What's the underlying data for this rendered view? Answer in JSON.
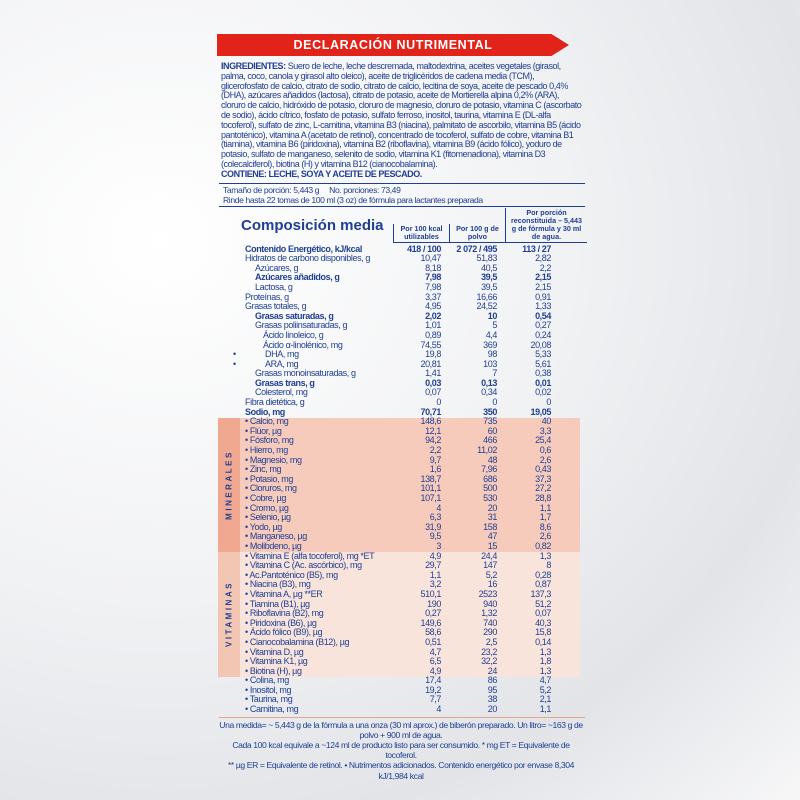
{
  "header": {
    "title": "DECLARACIÓN NUTRIMENTAL"
  },
  "ingredients": {
    "label": "INGREDIENTES:",
    "text": "Suero de leche, leche descremada, maltodextrina, aceites vegetales (girasol, palma, coco, canola y girasol alto oleico), aceite de triglicéridos de cadena media (TCM), glicerofosfato de calcio, citrato de sodio, citrato de calcio, lecitina de soya, aceite de pescado 0,4% (DHA), azúcares añadidos (lactosa), citrato de potasio, aceite de Mortierella alpina 0,2% (ARA), cloruro de calcio, hidróxido de potasio, cloruro de magnesio, cloruro de potasio, vitamina C (ascorbato de sodio), ácido cítrico, fosfato de potasio, sulfato ferroso, inositol, taurina, vitamina E (DL-alfa tocoferol), sulfato de zinc, L-carnitina, vitamina B3 (niacina), palmitato de ascorbilo, vitamina B5 (ácido pantoténico), vitamina A (acetato de retinol), concentrado de tocoferol, sulfato de cobre, vitamina B1 (tiamina), vitamina B6 (piridoxina), vitamina B2 (riboflavina), vitamina B9 (ácido fólico), yoduro de potasio, sulfato de manganeso, selenito de sodio, vitamina K1 (fitomenadiona), vitamina D3 (colecalciferol), biotina (H) y vitamina B12 (cianocobalamina).",
    "contains": "CONTIENE: LECHE, SOYA Y ACEITE DE PESCADO."
  },
  "serving": {
    "size": "Tamaño de porción: 5,443 g",
    "portions": "No. porciones: 73,49",
    "yield": "Rinde hasta 22 tomas de 100 ml (3 oz) de fórmula para lactantes preparada"
  },
  "table": {
    "title": "Composición media",
    "col1": "Por 100 kcal utilizables",
    "col2": "Por 100 g de polvo",
    "col3": "Por porción reconstituida – 5,443 g de fórmula y 30 ml de agua.",
    "minerals_label": "MINERALES",
    "vitamins_label": "VITAMINAS",
    "rows": [
      {
        "label": "Contenido Energético, kJ/kcal",
        "v1": "418 / 100",
        "v2": "2 072 / 495",
        "v3": "113 / 27",
        "bold": true,
        "indent": 0
      },
      {
        "label": "Hidratos de carbono disponibles, g",
        "v1": "10,47",
        "v2": "51,83",
        "v3": "2,82",
        "indent": 0
      },
      {
        "label": "Azúcares, g",
        "v1": "8,18",
        "v2": "40,5",
        "v3": "2,2",
        "indent": 1
      },
      {
        "label": "Azúcares añadidos, g",
        "v1": "7,98",
        "v2": "39,5",
        "v3": "2,15",
        "bold": true,
        "indent": 1
      },
      {
        "label": "Lactosa, g",
        "v1": "7,98",
        "v2": "39,5",
        "v3": "2,15",
        "indent": 1
      },
      {
        "label": "Proteínas, g",
        "v1": "3,37",
        "v2": "16,66",
        "v3": "0,91",
        "indent": 0
      },
      {
        "label": "Grasas totales, g",
        "v1": "4,95",
        "v2": "24,52",
        "v3": "1,33",
        "indent": 0
      },
      {
        "label": "Grasas saturadas, g",
        "v1": "2,02",
        "v2": "10",
        "v3": "0,54",
        "bold": true,
        "indent": 1
      },
      {
        "label": "Grasas poliinsaturadas, g",
        "v1": "1,01",
        "v2": "5",
        "v3": "0,27",
        "indent": 1
      },
      {
        "label": "Ácido linoleico, g",
        "v1": "0,89",
        "v2": "4,4",
        "v3": "0,24",
        "indent": 2
      },
      {
        "label": "Ácido α-linolénico, mg",
        "v1": "74,55",
        "v2": "369",
        "v3": "20,08",
        "indent": 2
      },
      {
        "label": "DHA, mg",
        "v1": "19,8",
        "v2": "98",
        "v3": "5,33",
        "indent": 2,
        "dot": "•"
      },
      {
        "label": "ARA, mg",
        "v1": "20,81",
        "v2": "103",
        "v3": "5,61",
        "indent": 2,
        "dot": "•"
      },
      {
        "label": "Grasas monoinsaturadas, g",
        "v1": "1,41",
        "v2": "7",
        "v3": "0,38",
        "indent": 1
      },
      {
        "label": "Grasas trans, g",
        "v1": "0,03",
        "v2": "0,13",
        "v3": "0,01",
        "bold": true,
        "indent": 1
      },
      {
        "label": "Colesterol, mg",
        "v1": "0,07",
        "v2": "0,34",
        "v3": "0,02",
        "indent": 1
      },
      {
        "label": "Fibra dietética, g",
        "v1": "0",
        "v2": "0",
        "v3": "0",
        "indent": 0
      },
      {
        "label": "Sodio, mg",
        "v1": "70,71",
        "v2": "350",
        "v3": "19,05",
        "bold": true,
        "indent": 0
      },
      {
        "label": "• Calcio, mg",
        "v1": "148,6",
        "v2": "735",
        "v3": "40",
        "indent": 0
      },
      {
        "label": "• Flúor, µg",
        "v1": "12,1",
        "v2": "60",
        "v3": "3,3",
        "indent": 0
      },
      {
        "label": "• Fósforo, mg",
        "v1": "94,2",
        "v2": "466",
        "v3": "25,4",
        "indent": 0
      },
      {
        "label": "• Hierro, mg",
        "v1": "2,2",
        "v2": "11,02",
        "v3": "0,6",
        "indent": 0
      },
      {
        "label": "• Magnesio, mg",
        "v1": "9,7",
        "v2": "48",
        "v3": "2,6",
        "indent": 0
      },
      {
        "label": "• Zinc, mg",
        "v1": "1,6",
        "v2": "7,96",
        "v3": "0,43",
        "indent": 0
      },
      {
        "label": "• Potasio, mg",
        "v1": "138,7",
        "v2": "686",
        "v3": "37,3",
        "indent": 0
      },
      {
        "label": "• Cloruros, mg",
        "v1": "101,1",
        "v2": "500",
        "v3": "27,2",
        "indent": 0
      },
      {
        "label": "• Cobre, µg",
        "v1": "107,1",
        "v2": "530",
        "v3": "28,8",
        "indent": 0
      },
      {
        "label": "• Cromo, µg",
        "v1": "4",
        "v2": "20",
        "v3": "1,1",
        "indent": 0
      },
      {
        "label": "• Selenio, µg",
        "v1": "6,3",
        "v2": "31",
        "v3": "1,7",
        "indent": 0
      },
      {
        "label": "• Yodo, µg",
        "v1": "31,9",
        "v2": "158",
        "v3": "8,6",
        "indent": 0
      },
      {
        "label": "• Manganeso, µg",
        "v1": "9,5",
        "v2": "47",
        "v3": "2,6",
        "indent": 0
      },
      {
        "label": "• Molibdeno, µg",
        "v1": "3",
        "v2": "15",
        "v3": "0,82",
        "indent": 0
      },
      {
        "label": "• Vitamina E (alfa tocoferol), mg *ET",
        "v1": "4,9",
        "v2": "24,4",
        "v3": "1,3",
        "indent": 0
      },
      {
        "label": "• Vitamina C (Ac. ascórbico), mg",
        "v1": "29,7",
        "v2": "147",
        "v3": "8",
        "indent": 0
      },
      {
        "label": "• Ac.Pantoténico (B5), mg",
        "v1": "1,1",
        "v2": "5,2",
        "v3": "0,28",
        "indent": 0
      },
      {
        "label": "• Niacina (B3), mg",
        "v1": "3,2",
        "v2": "16",
        "v3": "0,87",
        "indent": 0
      },
      {
        "label": "• Vitamina A, µg **ER",
        "v1": "510,1",
        "v2": "2523",
        "v3": "137,3",
        "indent": 0
      },
      {
        "label": "• Tiamina (B1), µg",
        "v1": "190",
        "v2": "940",
        "v3": "51,2",
        "indent": 0
      },
      {
        "label": "• Riboflavina (B2), mg",
        "v1": "0,27",
        "v2": "1,32",
        "v3": "0,07",
        "indent": 0
      },
      {
        "label": "• Piridoxina (B6), µg",
        "v1": "149,6",
        "v2": "740",
        "v3": "40,3",
        "indent": 0
      },
      {
        "label": "• Ácido fólico (B9), µg",
        "v1": "58,6",
        "v2": "290",
        "v3": "15,8",
        "indent": 0
      },
      {
        "label": "• Cianocobalamina (B12), µg",
        "v1": "0,51",
        "v2": "2,5",
        "v3": "0,14",
        "indent": 0
      },
      {
        "label": "• Vitamina D, µg",
        "v1": "4,7",
        "v2": "23,2",
        "v3": "1,3",
        "indent": 0
      },
      {
        "label": "• Vitamina K1, µg",
        "v1": "6,5",
        "v2": "32,2",
        "v3": "1,8",
        "indent": 0
      },
      {
        "label": "• Biotina (H), µg",
        "v1": "4,9",
        "v2": "24",
        "v3": "1,3",
        "indent": 0
      },
      {
        "label": "• Colina, mg",
        "v1": "17,4",
        "v2": "86",
        "v3": "4,7",
        "indent": 0
      },
      {
        "label": "• Inositol, mg",
        "v1": "19,2",
        "v2": "95",
        "v3": "5,2",
        "indent": 0
      },
      {
        "label": "• Taurina, mg",
        "v1": "7,7",
        "v2": "38",
        "v3": "2,1",
        "indent": 0
      },
      {
        "label": "• Carnitina, mg",
        "v1": "4",
        "v2": "20",
        "v3": "1,1",
        "indent": 0
      }
    ]
  },
  "footer": {
    "line1": "Una medida= ~ 5,443 g de la fórmula a una onza (30 ml aprox.) de biberón preparado. Un litro= ~163 g de polvo + 900 ml de agua.",
    "line2": "Cada 100 kcal equivale a ~124 ml de producto listo para ser consumido.    * mg ET = Equivalente de tocoferol.",
    "line3": "** µg ER = Equivalente de retinol.  • Nutrimentos adicionados.  Contenido energético por envase 8,304 kJ/1,984 kcal"
  },
  "colors": {
    "text": "#1f3f94",
    "banner": "#e2231a",
    "minerals": "#f6cbbb",
    "vitamins": "#f9e4db"
  }
}
